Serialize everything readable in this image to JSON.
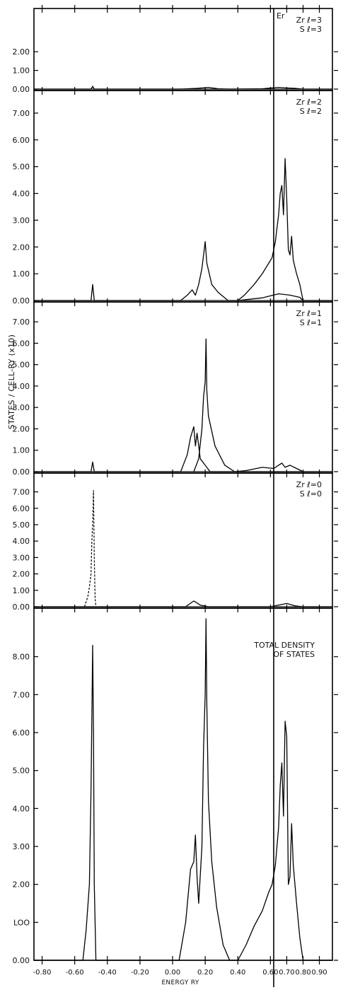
{
  "chart_data": {
    "type": "line",
    "ylabel": "STATES / CELL-RY (x10)",
    "xlabel": "ENERGY RY",
    "fermi_label": "Er",
    "fermi_energy": 0.62,
    "xlim": [
      -0.85,
      0.98
    ],
    "x_tick_values": [
      -0.8,
      -0.6,
      -0.4,
      -0.2,
      0.0,
      0.2,
      0.4,
      0.6,
      0.7,
      0.8,
      0.9
    ],
    "x_tick_labels": [
      "-0.80",
      "-0.60",
      "-0.40",
      "-0.20",
      "0.00",
      "0.20",
      "0.40",
      "0.60",
      "0.70",
      "0.80",
      "0.90"
    ],
    "panels": [
      {
        "id": "l3",
        "label_lines": [
          "Zr ℓ=3",
          "S ℓ=3"
        ],
        "ylim": [
          0,
          2.8
        ],
        "yticks": [
          0.0,
          1.0,
          2.0
        ],
        "ytick_labels": [
          "0.00",
          "1.00",
          "2.00"
        ],
        "series": [
          {
            "style": "solid",
            "points": [
              [
                -0.85,
                0
              ],
              [
                -0.5,
                0
              ],
              [
                -0.49,
                0.15
              ],
              [
                -0.48,
                0
              ],
              [
                0.05,
                0
              ],
              [
                0.15,
                0.04
              ],
              [
                0.22,
                0.09
              ],
              [
                0.28,
                0.02
              ],
              [
                0.35,
                0
              ],
              [
                0.55,
                0.02
              ],
              [
                0.65,
                0.09
              ],
              [
                0.7,
                0.06
              ],
              [
                0.75,
                0.04
              ],
              [
                0.8,
                0
              ],
              [
                0.98,
                0
              ]
            ]
          }
        ]
      },
      {
        "id": "l2",
        "label_lines": [
          "Zr ℓ=2",
          "S ℓ=2"
        ],
        "ylim": [
          0,
          7.5
        ],
        "yticks": [
          0.0,
          1.0,
          2.0,
          3.0,
          4.0,
          5.0,
          6.0,
          7.0
        ],
        "ytick_labels": [
          "0.00",
          "1.00",
          "2.00",
          "3.00",
          "4.00",
          "5.00",
          "6.00",
          "7.00"
        ],
        "series": [
          {
            "style": "solid",
            "points": [
              [
                -0.85,
                0
              ],
              [
                -0.5,
                0
              ],
              [
                -0.49,
                0.6
              ],
              [
                -0.48,
                0
              ],
              [
                0.05,
                0
              ],
              [
                0.09,
                0.2
              ],
              [
                0.12,
                0.4
              ],
              [
                0.14,
                0.2
              ],
              [
                0.16,
                0.6
              ],
              [
                0.18,
                1.2
              ],
              [
                0.2,
                2.2
              ],
              [
                0.21,
                1.4
              ],
              [
                0.24,
                0.6
              ],
              [
                0.28,
                0.3
              ],
              [
                0.34,
                0
              ],
              [
                0.4,
                0
              ],
              [
                0.44,
                0.2
              ],
              [
                0.5,
                0.6
              ],
              [
                0.55,
                1.0
              ],
              [
                0.59,
                1.4
              ],
              [
                0.61,
                1.6
              ],
              [
                0.63,
                2.2
              ],
              [
                0.65,
                3.2
              ],
              [
                0.66,
                4.0
              ],
              [
                0.67,
                4.3
              ],
              [
                0.68,
                3.2
              ],
              [
                0.69,
                5.3
              ],
              [
                0.7,
                3.8
              ],
              [
                0.71,
                1.9
              ],
              [
                0.72,
                1.7
              ],
              [
                0.73,
                2.4
              ],
              [
                0.74,
                1.5
              ],
              [
                0.76,
                1.0
              ],
              [
                0.78,
                0.6
              ],
              [
                0.8,
                0
              ],
              [
                0.98,
                0
              ]
            ]
          },
          {
            "style": "solid",
            "points": [
              [
                0.4,
                0
              ],
              [
                0.55,
                0.1
              ],
              [
                0.65,
                0.25
              ],
              [
                0.72,
                0.2
              ],
              [
                0.78,
                0.12
              ],
              [
                0.8,
                0
              ]
            ]
          }
        ]
      },
      {
        "id": "l1",
        "label_lines": [
          "Zr ℓ=1",
          "S ℓ=1"
        ],
        "ylim": [
          0,
          7.5
        ],
        "yticks": [
          0.0,
          1.0,
          2.0,
          3.0,
          4.0,
          5.0,
          6.0,
          7.0
        ],
        "ytick_labels": [
          "0.00",
          "1.00",
          "2.00",
          "3.00",
          "4.00",
          "5.00",
          "6.00",
          "7.00"
        ],
        "series": [
          {
            "style": "solid",
            "points": [
              [
                -0.85,
                0
              ],
              [
                -0.5,
                0
              ],
              [
                -0.49,
                0.45
              ],
              [
                -0.48,
                0
              ],
              [
                0.05,
                0
              ],
              [
                0.09,
                0.8
              ],
              [
                0.11,
                1.6
              ],
              [
                0.13,
                2.1
              ],
              [
                0.14,
                1.2
              ],
              [
                0.15,
                1.8
              ],
              [
                0.17,
                0.6
              ],
              [
                0.2,
                0.3
              ],
              [
                0.23,
                0
              ],
              [
                0.98,
                0
              ]
            ]
          },
          {
            "style": "solid",
            "points": [
              [
                0.13,
                0
              ],
              [
                0.16,
                0.6
              ],
              [
                0.18,
                2.0
              ],
              [
                0.19,
                3.5
              ],
              [
                0.2,
                4.2
              ],
              [
                0.205,
                6.2
              ],
              [
                0.21,
                3.8
              ],
              [
                0.22,
                2.6
              ],
              [
                0.26,
                1.2
              ],
              [
                0.32,
                0.3
              ],
              [
                0.38,
                0
              ],
              [
                0.45,
                0.05
              ],
              [
                0.55,
                0.2
              ],
              [
                0.62,
                0.15
              ],
              [
                0.65,
                0.3
              ],
              [
                0.67,
                0.4
              ],
              [
                0.69,
                0.2
              ],
              [
                0.72,
                0.3
              ],
              [
                0.76,
                0.15
              ],
              [
                0.8,
                0
              ]
            ]
          }
        ]
      },
      {
        "id": "l0",
        "label_lines": [
          "Zr ℓ=0",
          "S ℓ=0"
        ],
        "ylim": [
          0,
          7.5
        ],
        "yticks": [
          0.0,
          1.0,
          2.0,
          3.0,
          4.0,
          5.0,
          6.0,
          7.0
        ],
        "ytick_labels": [
          "0.00",
          "1.00",
          "2.00",
          "3.00",
          "4.00",
          "5.00",
          "6.00",
          "7.00"
        ],
        "series": [
          {
            "style": "dashed",
            "points": [
              [
                -0.54,
                0
              ],
              [
                -0.52,
                0.6
              ],
              [
                -0.51,
                1.2
              ],
              [
                -0.5,
                2.0
              ],
              [
                -0.495,
                4.0
              ],
              [
                -0.49,
                5.0
              ],
              [
                -0.485,
                7.1
              ],
              [
                -0.48,
                3.0
              ],
              [
                -0.475,
                0.5
              ],
              [
                -0.47,
                0
              ]
            ]
          },
          {
            "style": "solid",
            "points": [
              [
                -0.85,
                0
              ],
              [
                0.08,
                0
              ],
              [
                0.13,
                0.35
              ],
              [
                0.17,
                0.1
              ],
              [
                0.22,
                0
              ],
              [
                0.6,
                0
              ],
              [
                0.65,
                0.1
              ],
              [
                0.7,
                0.2
              ],
              [
                0.75,
                0.05
              ],
              [
                0.8,
                0
              ],
              [
                0.98,
                0
              ]
            ]
          }
        ]
      },
      {
        "id": "total",
        "label_lines": [
          "TOTAL DENSITY",
          "OF STATES"
        ],
        "ylim": [
          0,
          9.0
        ],
        "yticks": [
          0.0,
          1.0,
          2.0,
          3.0,
          4.0,
          5.0,
          6.0,
          7.0,
          8.0
        ],
        "ytick_labels": [
          "0.00",
          "LOO",
          "2.00",
          "3.00",
          "4.00",
          "5.00",
          "6.00",
          "7.00",
          "8.00"
        ],
        "series": [
          {
            "style": "solid",
            "points": [
              [
                -0.85,
                0
              ],
              [
                -0.55,
                0
              ],
              [
                -0.53,
                0.8
              ],
              [
                -0.51,
                2.0
              ],
              [
                -0.5,
                4.5
              ],
              [
                -0.49,
                8.3
              ],
              [
                -0.485,
                6.0
              ],
              [
                -0.48,
                2.0
              ],
              [
                -0.47,
                0
              ],
              [
                0.04,
                0
              ],
              [
                0.08,
                1.0
              ],
              [
                0.11,
                2.4
              ],
              [
                0.13,
                2.6
              ],
              [
                0.14,
                3.3
              ],
              [
                0.15,
                2.2
              ],
              [
                0.16,
                1.5
              ],
              [
                0.18,
                3.0
              ],
              [
                0.19,
                5.6
              ],
              [
                0.2,
                7.0
              ],
              [
                0.205,
                9.0
              ],
              [
                0.21,
                6.8
              ],
              [
                0.22,
                4.2
              ],
              [
                0.24,
                2.6
              ],
              [
                0.27,
                1.4
              ],
              [
                0.31,
                0.4
              ],
              [
                0.35,
                0
              ],
              [
                0.4,
                0
              ],
              [
                0.45,
                0.4
              ],
              [
                0.5,
                0.9
              ],
              [
                0.55,
                1.3
              ],
              [
                0.59,
                1.8
              ],
              [
                0.61,
                2.0
              ],
              [
                0.63,
                2.5
              ],
              [
                0.65,
                3.5
              ],
              [
                0.66,
                4.6
              ],
              [
                0.67,
                5.2
              ],
              [
                0.68,
                3.8
              ],
              [
                0.69,
                6.3
              ],
              [
                0.7,
                5.9
              ],
              [
                0.71,
                2.0
              ],
              [
                0.72,
                2.2
              ],
              [
                0.73,
                3.6
              ],
              [
                0.74,
                2.5
              ],
              [
                0.76,
                1.5
              ],
              [
                0.78,
                0.6
              ],
              [
                0.8,
                0
              ],
              [
                0.98,
                0
              ]
            ]
          }
        ]
      }
    ]
  }
}
